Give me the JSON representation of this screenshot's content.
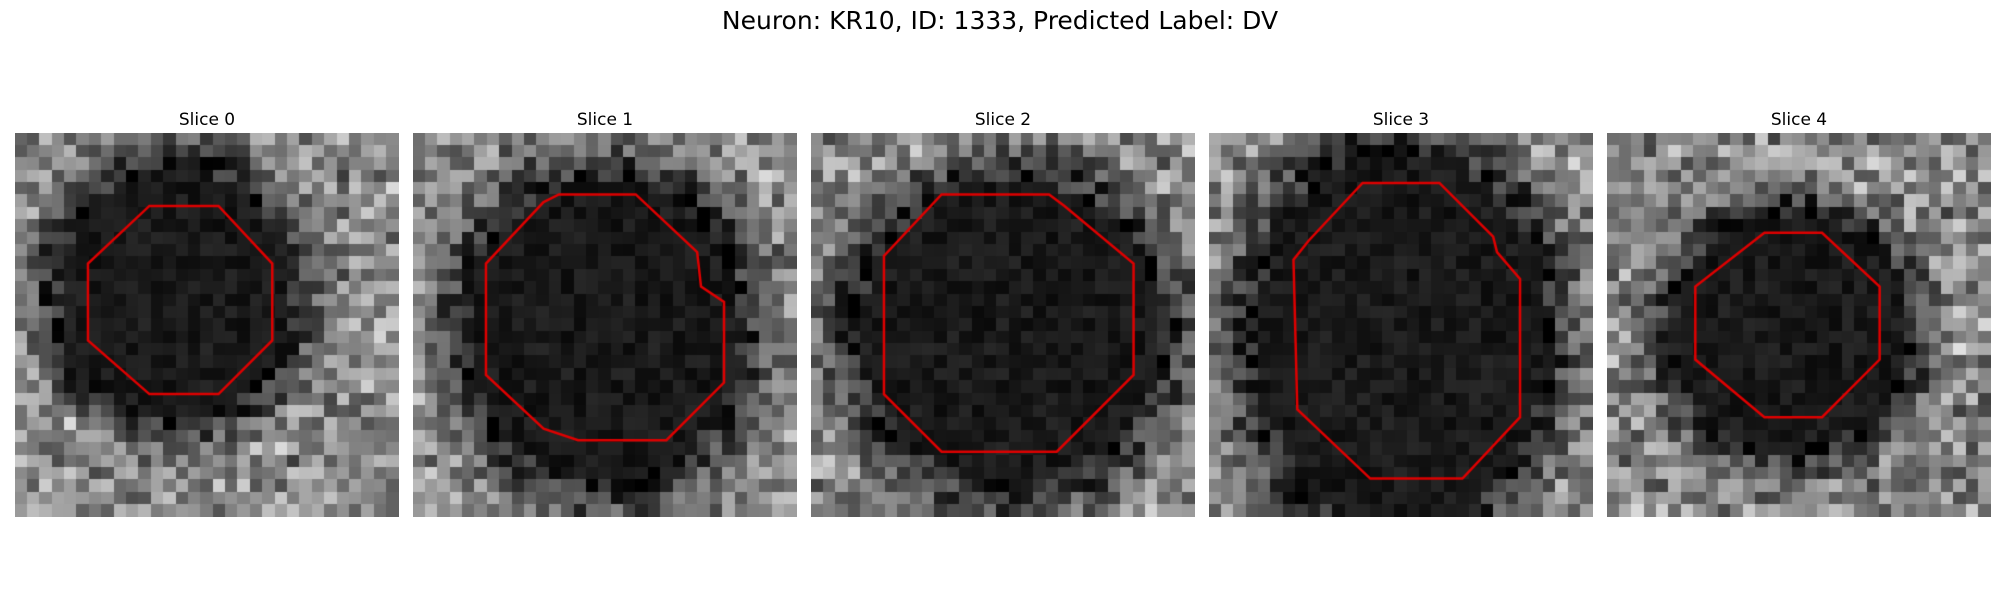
{
  "figure": {
    "title": "Neuron: KR10, ID: 1333, Predicted Label: DV"
  },
  "outline_color": "#e00000",
  "slices": [
    {
      "label": "Slice 0",
      "seed": 11,
      "blob": [
        0.42,
        0.42,
        0.36,
        0.38
      ],
      "outline": [
        [
          0.35,
          0.19
        ],
        [
          0.53,
          0.19
        ],
        [
          0.67,
          0.34
        ],
        [
          0.67,
          0.54
        ],
        [
          0.53,
          0.68
        ],
        [
          0.35,
          0.68
        ],
        [
          0.19,
          0.54
        ],
        [
          0.19,
          0.34
        ]
      ]
    },
    {
      "label": "Slice 1",
      "seed": 23,
      "blob": [
        0.5,
        0.52,
        0.42,
        0.46
      ],
      "outline": [
        [
          0.34,
          0.18
        ],
        [
          0.38,
          0.16
        ],
        [
          0.58,
          0.16
        ],
        [
          0.74,
          0.31
        ],
        [
          0.75,
          0.4
        ],
        [
          0.81,
          0.44
        ],
        [
          0.81,
          0.65
        ],
        [
          0.66,
          0.8
        ],
        [
          0.43,
          0.8
        ],
        [
          0.34,
          0.77
        ],
        [
          0.19,
          0.63
        ],
        [
          0.19,
          0.34
        ]
      ]
    },
    {
      "label": "Slice 2",
      "seed": 37,
      "blob": [
        0.52,
        0.52,
        0.46,
        0.46
      ],
      "outline": [
        [
          0.34,
          0.16
        ],
        [
          0.62,
          0.16
        ],
        [
          0.66,
          0.19
        ],
        [
          0.84,
          0.34
        ],
        [
          0.84,
          0.63
        ],
        [
          0.64,
          0.83
        ],
        [
          0.34,
          0.83
        ],
        [
          0.19,
          0.68
        ],
        [
          0.19,
          0.32
        ]
      ]
    },
    {
      "label": "Slice 3",
      "seed": 51,
      "blob": [
        0.5,
        0.54,
        0.44,
        0.58
      ],
      "outline": [
        [
          0.4,
          0.13
        ],
        [
          0.6,
          0.13
        ],
        [
          0.74,
          0.27
        ],
        [
          0.75,
          0.31
        ],
        [
          0.81,
          0.38
        ],
        [
          0.81,
          0.74
        ],
        [
          0.66,
          0.9
        ],
        [
          0.42,
          0.9
        ],
        [
          0.23,
          0.72
        ],
        [
          0.22,
          0.33
        ],
        [
          0.26,
          0.28
        ]
      ]
    },
    {
      "label": "Slice 4",
      "seed": 67,
      "blob": [
        0.48,
        0.52,
        0.36,
        0.36
      ],
      "outline": [
        [
          0.41,
          0.26
        ],
        [
          0.56,
          0.26
        ],
        [
          0.71,
          0.4
        ],
        [
          0.71,
          0.59
        ],
        [
          0.56,
          0.74
        ],
        [
          0.41,
          0.74
        ],
        [
          0.23,
          0.59
        ],
        [
          0.23,
          0.4
        ]
      ]
    }
  ]
}
